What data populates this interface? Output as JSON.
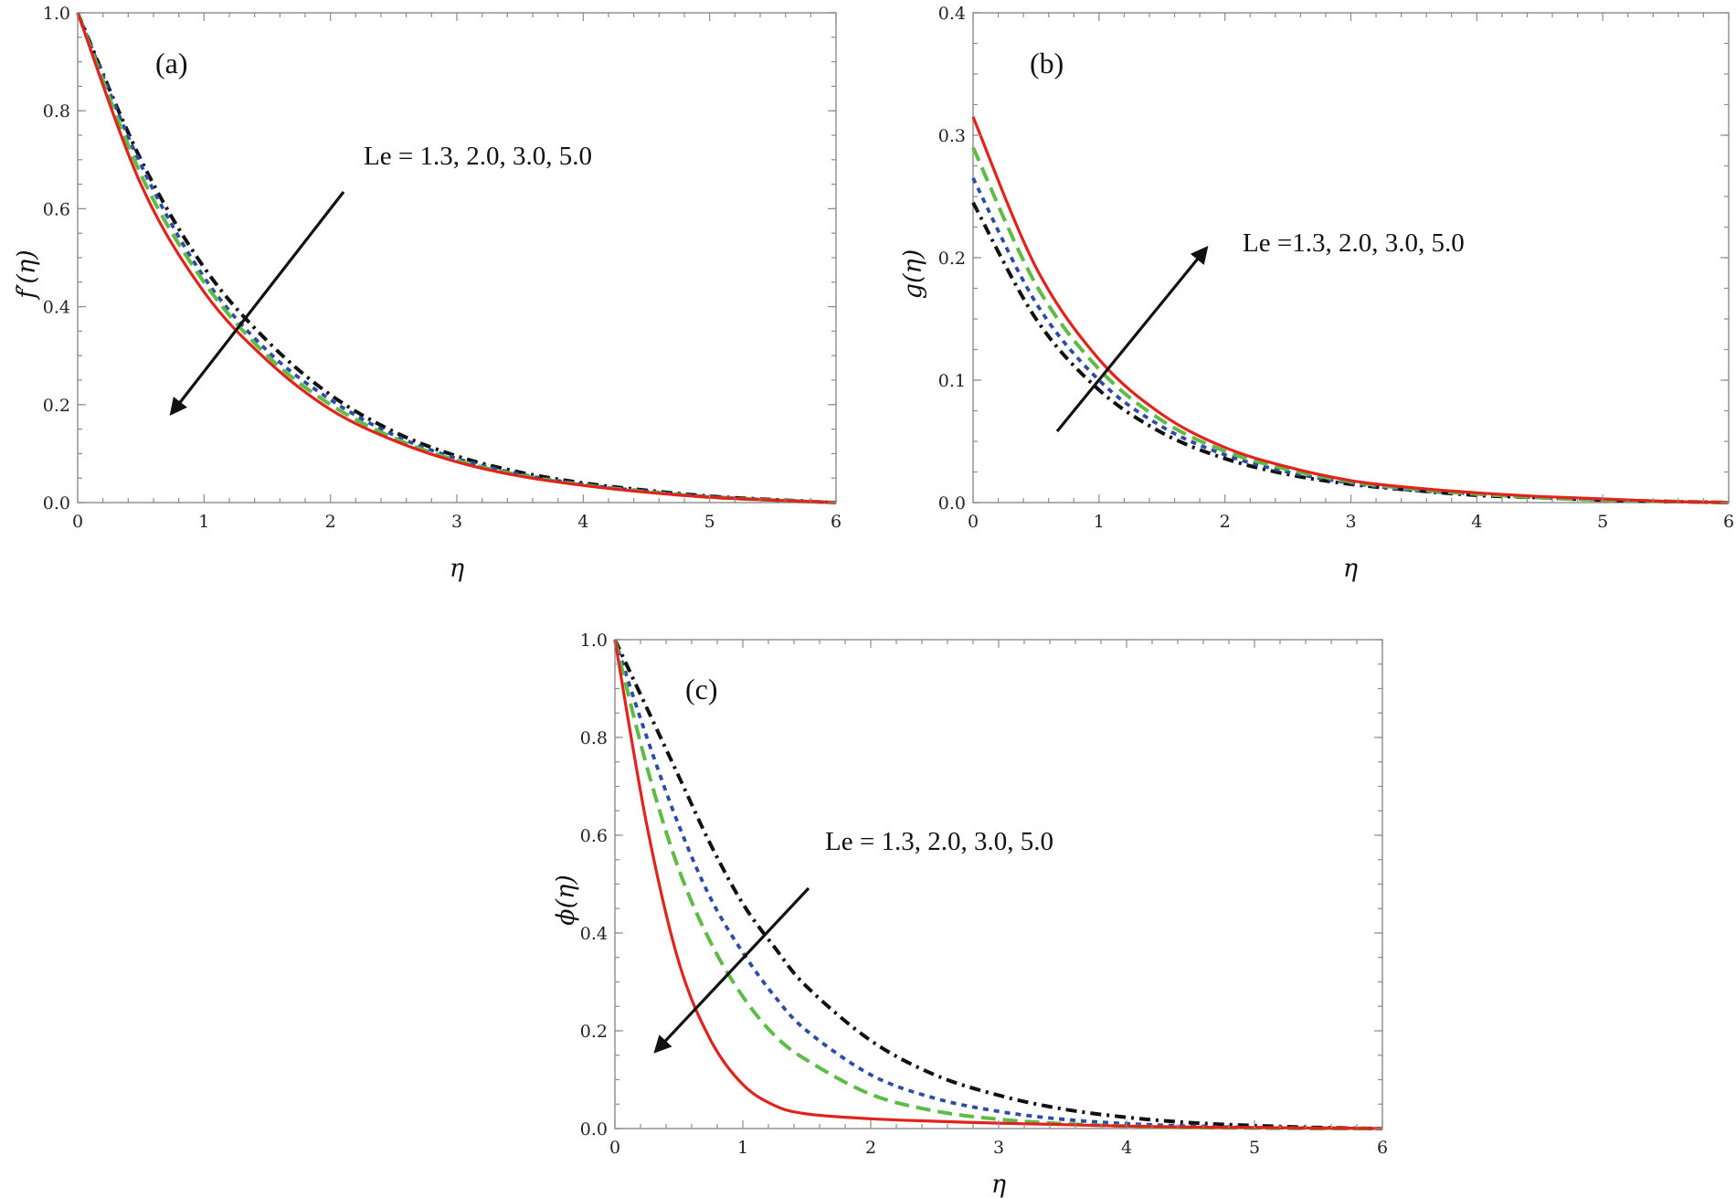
{
  "chart_data": [
    {
      "type": "line",
      "panel_label": "(a)",
      "xlabel": "η",
      "ylabel": "f′(η)",
      "xlim": [
        0,
        6
      ],
      "ylim": [
        0,
        1
      ],
      "xticks": [
        "0",
        "1",
        "2",
        "3",
        "4",
        "5",
        "6"
      ],
      "yticks": [
        "0.0",
        "0.2",
        "0.4",
        "0.6",
        "0.8",
        "1.0"
      ],
      "annotation": "Le = 1.3, 2.0, 3.0, 5.0",
      "arrow_direction": "down-left",
      "x": [
        0,
        0.5,
        1,
        1.5,
        2,
        2.5,
        3,
        3.5,
        4,
        4.5,
        5,
        5.5,
        6
      ],
      "series": [
        {
          "name": "Le = 1.3",
          "color": "#111111",
          "dash": "dashdot",
          "values": [
            1.0,
            0.7,
            0.48,
            0.33,
            0.22,
            0.145,
            0.095,
            0.062,
            0.04,
            0.025,
            0.013,
            0.006,
            0.0
          ]
        },
        {
          "name": "Le = 2.0",
          "color": "#2b4ca8",
          "dash": "dot",
          "values": [
            1.0,
            0.69,
            0.46,
            0.31,
            0.21,
            0.138,
            0.09,
            0.058,
            0.037,
            0.023,
            0.012,
            0.005,
            0.0
          ]
        },
        {
          "name": "Le = 3.0",
          "color": "#5dbb46",
          "dash": "dash",
          "values": [
            1.0,
            0.67,
            0.45,
            0.3,
            0.2,
            0.132,
            0.086,
            0.056,
            0.036,
            0.022,
            0.011,
            0.005,
            0.0
          ]
        },
        {
          "name": "Le = 5.0",
          "color": "#e3221c",
          "dash": "solid",
          "values": [
            1.0,
            0.65,
            0.43,
            0.29,
            0.19,
            0.127,
            0.083,
            0.054,
            0.035,
            0.021,
            0.011,
            0.005,
            0.0
          ]
        }
      ]
    },
    {
      "type": "line",
      "panel_label": "(b)",
      "xlabel": "η",
      "ylabel": "g(η)",
      "xlim": [
        0,
        6
      ],
      "ylim": [
        0,
        0.4
      ],
      "xticks": [
        "0",
        "1",
        "2",
        "3",
        "4",
        "5",
        "6"
      ],
      "yticks": [
        "0.0",
        "0.1",
        "0.2",
        "0.3",
        "0.4"
      ],
      "annotation": "Le =1.3, 2.0, 3.0, 5.0",
      "arrow_direction": "up-right",
      "x": [
        0,
        0.5,
        1,
        1.5,
        2,
        2.5,
        3,
        3.5,
        4,
        4.5,
        5,
        5.5,
        6
      ],
      "series": [
        {
          "name": "Le = 1.3",
          "color": "#111111",
          "dash": "dashdot",
          "values": [
            0.245,
            0.15,
            0.092,
            0.057,
            0.036,
            0.023,
            0.015,
            0.01,
            0.006,
            0.004,
            0.002,
            0.001,
            0.0
          ]
        },
        {
          "name": "Le = 2.0",
          "color": "#2b4ca8",
          "dash": "dot",
          "values": [
            0.265,
            0.163,
            0.1,
            0.062,
            0.039,
            0.025,
            0.016,
            0.01,
            0.007,
            0.004,
            0.002,
            0.001,
            0.0
          ]
        },
        {
          "name": "Le = 3.0",
          "color": "#5dbb46",
          "dash": "dash",
          "values": [
            0.29,
            0.178,
            0.109,
            0.067,
            0.042,
            0.027,
            0.017,
            0.011,
            0.007,
            0.004,
            0.002,
            0.001,
            0.0
          ]
        },
        {
          "name": "Le = 5.0",
          "color": "#e3221c",
          "dash": "solid",
          "values": [
            0.315,
            0.192,
            0.117,
            0.072,
            0.045,
            0.029,
            0.018,
            0.012,
            0.008,
            0.005,
            0.003,
            0.001,
            0.0
          ]
        }
      ]
    },
    {
      "type": "line",
      "panel_label": "(c)",
      "xlabel": "η",
      "ylabel": "ϕ(η)",
      "xlim": [
        0,
        6
      ],
      "ylim": [
        0,
        1
      ],
      "xticks": [
        "0",
        "1",
        "2",
        "3",
        "4",
        "5",
        "6"
      ],
      "yticks": [
        "0.0",
        "0.2",
        "0.4",
        "0.6",
        "0.8",
        "1.0"
      ],
      "annotation": "Le = 1.3, 2.0, 3.0, 5.0",
      "arrow_direction": "down-left",
      "x": [
        0,
        0.25,
        0.5,
        0.75,
        1,
        1.25,
        1.5,
        2,
        2.5,
        3,
        3.5,
        4,
        4.5,
        5,
        5.5,
        6
      ],
      "series": [
        {
          "name": "Le = 1.3",
          "color": "#111111",
          "dash": "dashdot",
          "values": [
            1.0,
            0.86,
            0.72,
            0.58,
            0.46,
            0.37,
            0.29,
            0.18,
            0.11,
            0.068,
            0.04,
            0.023,
            0.012,
            0.006,
            0.002,
            0.0
          ]
        },
        {
          "name": "Le = 2.0",
          "color": "#2b4ca8",
          "dash": "dot",
          "values": [
            1.0,
            0.8,
            0.62,
            0.47,
            0.36,
            0.27,
            0.2,
            0.11,
            0.062,
            0.035,
            0.019,
            0.01,
            0.005,
            0.002,
            0.001,
            0.0
          ]
        },
        {
          "name": "Le = 3.0",
          "color": "#5dbb46",
          "dash": "dash",
          "values": [
            1.0,
            0.74,
            0.53,
            0.38,
            0.27,
            0.19,
            0.14,
            0.07,
            0.036,
            0.019,
            0.01,
            0.005,
            0.002,
            0.001,
            0.0,
            0.0
          ]
        },
        {
          "name": "Le = 5.0",
          "color": "#e3221c",
          "dash": "solid",
          "values": [
            1.0,
            0.62,
            0.34,
            0.18,
            0.09,
            0.047,
            0.03,
            0.02,
            0.015,
            0.011,
            0.008,
            0.005,
            0.003,
            0.002,
            0.001,
            0.0
          ]
        }
      ]
    }
  ]
}
